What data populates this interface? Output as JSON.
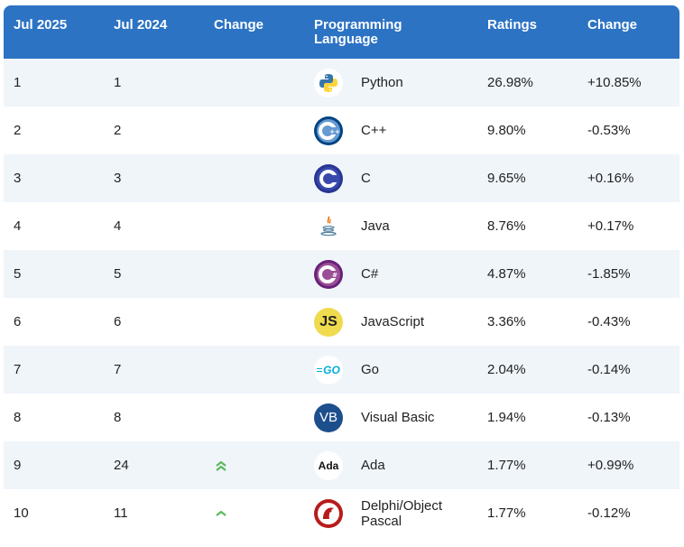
{
  "header": {
    "col1": "Jul 2025",
    "col2": "Jul 2024",
    "col3": "Change",
    "col4_line1": "Programming",
    "col4_line2": "Language",
    "col5": "Ratings",
    "col6": "Change"
  },
  "rows": [
    {
      "rank_2025": "1",
      "rank_2024": "1",
      "trend": "",
      "logo": "python-logo",
      "language": "Python",
      "rating": "26.98%",
      "change": "+10.85%"
    },
    {
      "rank_2025": "2",
      "rank_2024": "2",
      "trend": "",
      "logo": "cpp-logo",
      "language": "C++",
      "rating": "9.80%",
      "change": "-0.53%"
    },
    {
      "rank_2025": "3",
      "rank_2024": "3",
      "trend": "",
      "logo": "c-logo",
      "language": "C",
      "rating": "9.65%",
      "change": "+0.16%"
    },
    {
      "rank_2025": "4",
      "rank_2024": "4",
      "trend": "",
      "logo": "java-logo",
      "language": "Java",
      "rating": "8.76%",
      "change": "+0.17%"
    },
    {
      "rank_2025": "5",
      "rank_2024": "5",
      "trend": "",
      "logo": "csharp-logo",
      "language": "C#",
      "rating": "4.87%",
      "change": "-1.85%"
    },
    {
      "rank_2025": "6",
      "rank_2024": "6",
      "trend": "",
      "logo": "javascript-logo",
      "language": "JavaScript",
      "rating": "3.36%",
      "change": "-0.43%"
    },
    {
      "rank_2025": "7",
      "rank_2024": "7",
      "trend": "",
      "logo": "go-logo",
      "language": "Go",
      "rating": "2.04%",
      "change": "-0.14%"
    },
    {
      "rank_2025": "8",
      "rank_2024": "8",
      "trend": "",
      "logo": "vb-logo",
      "language": "Visual Basic",
      "rating": "1.94%",
      "change": "-0.13%"
    },
    {
      "rank_2025": "9",
      "rank_2024": "24",
      "trend": "double-up",
      "logo": "ada-logo",
      "language": "Ada",
      "rating": "1.77%",
      "change": "+0.99%"
    },
    {
      "rank_2025": "10",
      "rank_2024": "11",
      "trend": "up",
      "logo": "delphi-logo",
      "language": "Delphi/Object Pascal",
      "language_line1": "Delphi/Object",
      "language_line2": "Pascal",
      "rating": "1.77%",
      "change": "-0.12%"
    }
  ],
  "logo_text": {
    "js": "JS",
    "go": "GO",
    "vb": "VB",
    "ada": "Ada"
  },
  "colors": {
    "header_bg": "#2c73c4",
    "alt_row_bg": "#f0f5fa",
    "trend_up": "#5cb85c"
  }
}
